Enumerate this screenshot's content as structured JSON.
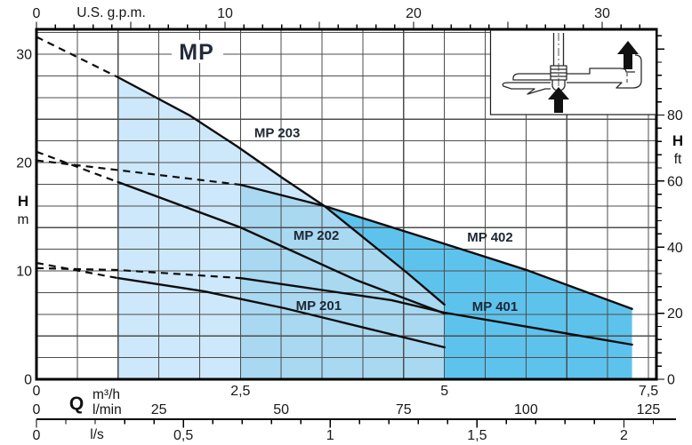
{
  "chart_data": {
    "type": "line",
    "title": "MP",
    "x_axes": {
      "gpm": {
        "label": "U.S. g.p.m.",
        "ticks": [
          0,
          10,
          20,
          30
        ],
        "minor_step": 1,
        "max": 32
      },
      "m3h": {
        "q_label": "Q",
        "label": "m³/h",
        "ticks": [
          "0",
          "2,5",
          "5",
          "7,5"
        ],
        "values": [
          0,
          2.5,
          5,
          7.5
        ]
      },
      "lmin": {
        "label": "l/min",
        "ticks": [
          0,
          25,
          50,
          75,
          100,
          125
        ]
      },
      "ls": {
        "label": "l/s",
        "ticks": [
          "0",
          "0,5",
          "1",
          "1,5",
          "2"
        ],
        "values": [
          0,
          0.5,
          1,
          1.5,
          2
        ],
        "minor_step": 0.1,
        "max": 2.1
      }
    },
    "y_axes": {
      "m": {
        "label": "H",
        "unit": "m",
        "ticks": [
          0,
          10,
          20,
          30
        ],
        "grid_step": 2,
        "max": 32.3
      },
      "ft": {
        "label": "H",
        "unit": "ft",
        "ticks": [
          0,
          20,
          40,
          60,
          80
        ],
        "minor_step": 4,
        "max": 104
      }
    },
    "series": [
      {
        "name": "MP 203",
        "dashed": [
          [
            0,
            31.6
          ],
          [
            1.0,
            27.87
          ]
        ],
        "solid": [
          [
            1.0,
            27.87
          ],
          [
            1.88,
            24.34
          ],
          [
            2.46,
            21.48
          ],
          [
            3.01,
            18.61
          ],
          [
            3.53,
            15.98
          ],
          [
            4.54,
            9.84
          ],
          [
            5.0,
            6.89
          ]
        ],
        "label_pos": [
          2.95,
          22.35
        ]
      },
      {
        "name": "MP 202",
        "dashed": [
          [
            0,
            21.0
          ],
          [
            1.0,
            18.2
          ]
        ],
        "solid": [
          [
            1.0,
            18.2
          ],
          [
            2.5,
            14.02
          ],
          [
            3.91,
            9.18
          ],
          [
            5.0,
            6.07
          ]
        ],
        "label_pos": [
          3.43,
          12.85
        ]
      },
      {
        "name": "MP 201",
        "dashed": [
          [
            0,
            10.74
          ],
          [
            1.0,
            9.34
          ]
        ],
        "solid": [
          [
            1.0,
            9.34
          ],
          [
            2.06,
            8.11
          ],
          [
            3.04,
            6.56
          ],
          [
            5.0,
            2.95
          ]
        ],
        "label_pos": [
          3.46,
          6.4
        ]
      },
      {
        "name": "MP 402",
        "dashed": [
          [
            0,
            20.2
          ],
          [
            1.0,
            19.3
          ],
          [
            2.5,
            17.95
          ]
        ],
        "solid": [
          [
            2.5,
            17.95
          ],
          [
            3.53,
            15.98
          ],
          [
            5.0,
            12.5
          ],
          [
            6.0,
            10.1
          ],
          [
            7.3,
            6.5
          ]
        ],
        "label_pos": [
          5.56,
          12.7
        ]
      },
      {
        "name": "MP 401",
        "dashed": [
          [
            0,
            10.25
          ],
          [
            1.0,
            10.08
          ],
          [
            2.5,
            9.34
          ]
        ],
        "solid": [
          [
            2.5,
            9.34
          ],
          [
            4.35,
            7.3
          ],
          [
            5.0,
            6.15
          ],
          [
            7.3,
            3.2
          ]
        ],
        "label_pos": [
          5.62,
          6.3
        ]
      }
    ],
    "regions": [
      {
        "name": "region-mp20x-low",
        "color": "pale",
        "points": [
          [
            1.0,
            0
          ],
          [
            1.0,
            27.87
          ],
          [
            1.88,
            24.34
          ],
          [
            2.46,
            21.48
          ],
          [
            3.01,
            18.61
          ],
          [
            3.53,
            15.98
          ],
          [
            2.5,
            17.95
          ],
          [
            2.5,
            0
          ]
        ]
      },
      {
        "name": "region-mp20x-high",
        "color": "medium",
        "points": [
          [
            2.5,
            0
          ],
          [
            2.5,
            17.95
          ],
          [
            3.53,
            15.98
          ],
          [
            4.54,
            9.84
          ],
          [
            5.0,
            6.89
          ],
          [
            5.0,
            0
          ]
        ]
      },
      {
        "name": "region-mp40x",
        "color": "dark",
        "points": [
          [
            5.0,
            0
          ],
          [
            5.0,
            6.89
          ],
          [
            4.54,
            9.84
          ],
          [
            3.53,
            15.98
          ],
          [
            5.0,
            12.5
          ],
          [
            6.0,
            10.1
          ],
          [
            7.3,
            6.5
          ],
          [
            7.3,
            0
          ]
        ]
      }
    ],
    "colors": {
      "pale": "#cde8fa",
      "medium": "#a9d8f1",
      "dark": "#5ec3ec",
      "curve": "#0d0d0d",
      "grid": "#4d4d4d",
      "label": "#1e2633"
    }
  }
}
